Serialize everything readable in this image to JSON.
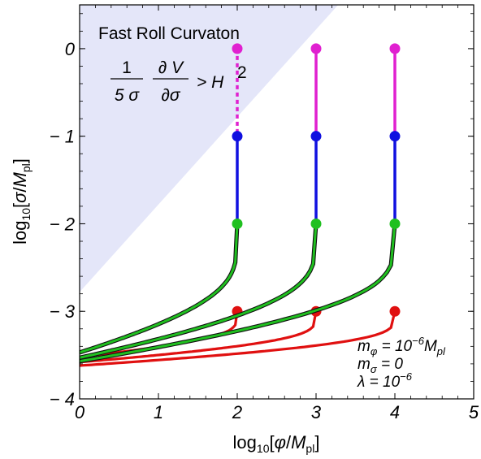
{
  "chart_data": {
    "type": "line",
    "xlabel_parts": {
      "pre": "log",
      "sub": "10",
      "mid": "[",
      "var": "φ",
      "slash": "/",
      "M": "M",
      "msub": "pl",
      "post": "]"
    },
    "ylabel_parts": {
      "pre": "log",
      "sub": "10",
      "mid": "[",
      "var": "σ",
      "slash": "/",
      "M": "M",
      "msub": "pl",
      "post": "]"
    },
    "xlim": [
      0,
      5
    ],
    "ylim": [
      -4,
      0.5
    ],
    "x_ticks": [
      0,
      1,
      2,
      3,
      4,
      5
    ],
    "x_tick_labels": [
      "0",
      "1",
      "2",
      "3",
      "4",
      "5"
    ],
    "y_ticks": [
      0,
      -1,
      -2,
      -3,
      -4
    ],
    "y_tick_labels": [
      "0",
      "− 1",
      "− 2",
      "− 3",
      "− 4"
    ],
    "fast_roll_region": {
      "label": "Fast Roll Curvaton",
      "boundary": [
        [
          0,
          -2.78
        ],
        [
          3.28,
          0.5
        ]
      ],
      "fill": "#e4e6f9",
      "condition": {
        "num": "1",
        "den": "5 σ",
        "pnum": "∂ V",
        "pden": "∂σ",
        "rhs": "> H",
        "rhs_exp": "2"
      }
    },
    "trajectories": [
      {
        "x0": 2,
        "dots": [
          0,
          -1,
          -2,
          -3
        ],
        "dashed_top": true
      },
      {
        "x0": 3,
        "dots": [
          0,
          -1,
          -2,
          -3
        ],
        "dashed_top": false
      },
      {
        "x0": 4,
        "dots": [
          0,
          -1,
          -2,
          -3
        ],
        "dashed_top": false
      }
    ],
    "green_curves": [
      {
        "start_y": -2,
        "end_y": -3.47
      },
      {
        "start_y": -2,
        "end_y": -3.53
      },
      {
        "start_y": -2,
        "end_y": -3.57
      }
    ],
    "red_curves": [
      {
        "start_y": -3,
        "end_y": -3.52
      },
      {
        "start_y": -3,
        "end_y": -3.58
      },
      {
        "start_y": -3,
        "end_y": -3.62
      }
    ],
    "colors": {
      "magenta": "#e020d0",
      "blue": "#1010e0",
      "green": "#20c020",
      "red": "#e01010",
      "dark": "#111111"
    },
    "parameters": [
      {
        "sym": "m",
        "sub": "φ",
        "eq": " = 10",
        "exp": "−6",
        "tail": "M",
        "tail_sub": "pl"
      },
      {
        "sym": "m",
        "sub": "σ",
        "eq": " = 0",
        "exp": "",
        "tail": "",
        "tail_sub": ""
      },
      {
        "sym": "λ",
        "sub": "",
        "eq": " = 10",
        "exp": "−6",
        "tail": "",
        "tail_sub": ""
      }
    ]
  }
}
